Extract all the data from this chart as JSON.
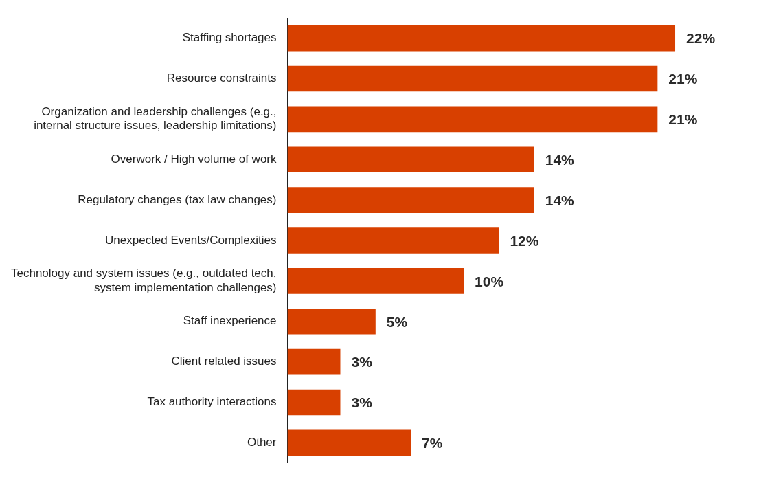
{
  "chart_data": {
    "type": "bar",
    "orientation": "horizontal",
    "categories": [
      "Staffing shortages",
      "Resource constraints",
      "Organization and leadership challenges (e.g., internal structure issues, leadership limitations)",
      "Overwork / High volume of work",
      "Regulatory changes (tax law changes)",
      "Unexpected Events/Complexities",
      "Technology and system issues (e.g., outdated tech, system implementation challenges)",
      "Staff inexperience",
      "Client related issues",
      "Tax authority interactions",
      "Other"
    ],
    "values": [
      22,
      21,
      21,
      14,
      14,
      12,
      10,
      5,
      3,
      3,
      7
    ],
    "value_labels": [
      "22%",
      "21%",
      "21%",
      "14%",
      "14%",
      "12%",
      "10%",
      "5%",
      "3%",
      "3%",
      "7%"
    ],
    "color": "#d84000",
    "legend": false,
    "tick_labels": "y"
  }
}
